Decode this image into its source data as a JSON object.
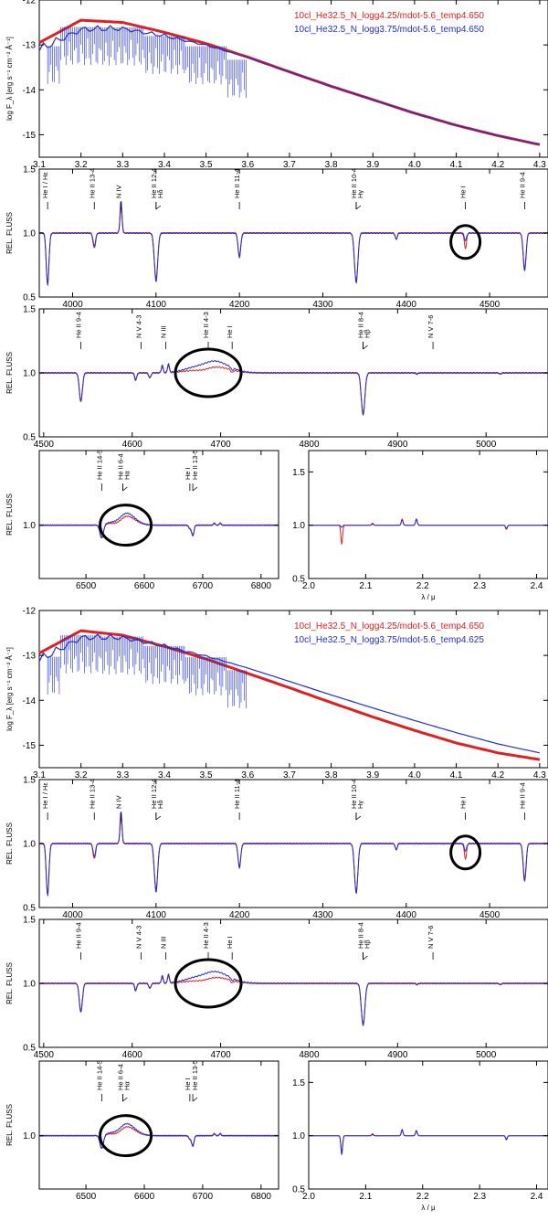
{
  "colors": {
    "red": "#e02020",
    "blue": "#1f2fd0",
    "axis": "#000000"
  },
  "blocks": [
    {
      "name": "top",
      "sed": {
        "legend": [
          {
            "text": "10cl_He32.5_N_logg4.25/mdot-5.6_temp4.650",
            "color": "#e02020"
          },
          {
            "text": "10cl_He32.5_N_logg3.75/mdot-5.6_temp4.650",
            "color": "#1f2fd0"
          }
        ],
        "ylabel": "log F_λ [erg s⁻¹ cm⁻² Å⁻¹]",
        "xticks": [
          "3.1",
          "3.2",
          "3.3",
          "3.4",
          "3.5",
          "3.6",
          "3.7",
          "3.8",
          "3.9",
          "4.0",
          "4.1",
          "4.2",
          "4.3"
        ],
        "yticks": [
          "-12",
          "-13",
          "-14",
          "-15"
        ]
      },
      "opt1": {
        "ylabel": "REL. FLUSS",
        "xticks": [
          "4000",
          "4100",
          "4200",
          "4300",
          "4400",
          "4500"
        ],
        "yticks": [
          "0.5",
          "1.0",
          "1.5"
        ],
        "lines": [
          "He I / Hε",
          "He II 13-4",
          "N IV",
          "He II 12-4",
          "Hδ",
          "He II 11-4",
          "He II 10-4",
          "Hγ",
          "He I",
          "He II 9-4"
        ]
      },
      "opt2": {
        "ylabel": "REL. FLUSS",
        "xticks": [
          "4500",
          "4600",
          "4700",
          "4800",
          "4900",
          "5000"
        ],
        "yticks": [
          "0.5",
          "1.0",
          "1.5"
        ],
        "lines": [
          "He II 9-4",
          "N V 4-3",
          "N III",
          "He II 4-3",
          "He I",
          "He II 8-4",
          "Hβ",
          "N V 7-6"
        ]
      },
      "halpha": {
        "ylabel": "REL. FLUSS",
        "xticks": [
          "6500",
          "6600",
          "6700",
          "6800"
        ],
        "yticks": [
          "1.0"
        ],
        "lines": [
          "He II 14-5",
          "He II 6-4",
          "Hα",
          "He I",
          "He II 13-5"
        ]
      },
      "ir": {
        "xlabel": "λ / μ",
        "xticks": [
          "2.0",
          "2.1",
          "2.2",
          "2.3",
          "2.4"
        ],
        "yticks": [
          "0.5",
          "1.0",
          "1.5"
        ]
      }
    },
    {
      "name": "bottom",
      "sed": {
        "legend": [
          {
            "text": "10cl_He32.5_N_logg4.25/mdot-5.6_temp4.650",
            "color": "#e02020"
          },
          {
            "text": "10cl_He32.5_N_logg3.75/mdot-5.6_temp4.625",
            "color": "#1f2fd0"
          }
        ],
        "ylabel": "log F_λ [erg s⁻¹ cm⁻² Å⁻¹]",
        "xticks": [
          "3.1",
          "3.2",
          "3.3",
          "3.4",
          "3.5",
          "3.6",
          "3.7",
          "3.8",
          "3.9",
          "4.0",
          "4.1",
          "4.2",
          "4.3"
        ],
        "yticks": [
          "-12",
          "-13",
          "-14",
          "-15"
        ]
      },
      "opt1": {
        "ylabel": "REL. FLUSS",
        "xticks": [
          "4000",
          "4100",
          "4200",
          "4300",
          "4400",
          "4500"
        ],
        "yticks": [
          "0.5",
          "1.0",
          "1.5"
        ],
        "lines": [
          "He I / Hε",
          "He II 13-4",
          "N IV",
          "He II 12-4",
          "Hδ",
          "He II 11-4",
          "He II 10-4",
          "Hγ",
          "He I",
          "He II 9-4"
        ]
      },
      "opt2": {
        "ylabel": "REL. FLUSS",
        "xticks": [
          "4500",
          "4600",
          "4700",
          "4800",
          "4900",
          "5000"
        ],
        "yticks": [
          "0.5",
          "1.0",
          "1.5"
        ],
        "lines": [
          "He II 9-4",
          "N V 4-3",
          "N III",
          "He II 4-3",
          "He I",
          "He II 8-4",
          "Hβ",
          "N V 7-6"
        ]
      },
      "halpha": {
        "ylabel": "REL. FLUSS",
        "xticks": [
          "6500",
          "6600",
          "6700",
          "6800"
        ],
        "yticks": [
          "1.0"
        ],
        "lines": [
          "He II 14-5",
          "He II 6-4",
          "Hα",
          "He I",
          "He II 13-5"
        ]
      },
      "ir": {
        "xlabel": "λ / μ",
        "xticks": [
          "2.0",
          "2.1",
          "2.2",
          "2.3",
          "2.4"
        ],
        "yticks": [
          "0.5",
          "1.0",
          "1.5"
        ]
      }
    }
  ],
  "chart_data": [
    {
      "type": "line",
      "xlabel": "",
      "ylabel": "log F_λ [erg s⁻¹ cm⁻² Å⁻¹]",
      "xlim": [
        3.1,
        4.32
      ],
      "ylim": [
        -15.5,
        -12.0
      ],
      "series": [
        {
          "name": "10cl_He32.5_N_logg4.25/mdot-5.6_temp4.650",
          "color": "#e02020",
          "x": [
            3.1,
            3.2,
            3.3,
            3.4,
            3.5,
            3.6,
            3.7,
            3.8,
            3.9,
            4.0,
            4.1,
            4.2,
            4.3
          ],
          "y": [
            -12.95,
            -12.45,
            -12.5,
            -12.72,
            -12.97,
            -13.27,
            -13.6,
            -13.92,
            -14.22,
            -14.52,
            -14.79,
            -15.02,
            -15.22
          ]
        },
        {
          "name": "10cl_He32.5_N_logg3.75/mdot-5.6_temp4.650",
          "color": "#1f2fd0",
          "x": [
            3.1,
            3.2,
            3.3,
            3.4,
            3.5,
            3.6,
            3.7,
            3.8,
            3.9,
            4.0,
            4.1,
            4.2,
            4.3
          ],
          "y": [
            -12.98,
            -12.55,
            -12.56,
            -12.75,
            -12.98,
            -13.28,
            -13.6,
            -13.92,
            -14.22,
            -14.52,
            -14.79,
            -15.02,
            -15.22
          ]
        }
      ]
    },
    {
      "type": "line",
      "xlabel": "",
      "ylabel": "REL. FLUSS",
      "xlim": [
        3960,
        4570
      ],
      "ylim": [
        0.5,
        1.5
      ],
      "series": [
        {
          "name": "10cl_He32.5_N_logg4.25/mdot-5.6_temp4.650",
          "color": "#e02020",
          "x": [
            4026,
            4058,
            4100,
            4200,
            4340,
            4471,
            4542
          ],
          "y": [
            0.88,
            1.2,
            0.65,
            0.83,
            0.63,
            0.88,
            0.73
          ]
        },
        {
          "name": "10cl_He32.5_N_logg3.75/mdot-5.6_temp4.650",
          "color": "#1f2fd0",
          "x": [
            4026,
            4058,
            4100,
            4200,
            4340,
            4471,
            4542
          ],
          "y": [
            0.9,
            1.25,
            0.62,
            0.82,
            0.62,
            0.94,
            0.71
          ]
        }
      ]
    },
    {
      "type": "line",
      "xlabel": "",
      "ylabel": "REL. FLUSS",
      "xlim": [
        4495,
        5070
      ],
      "ylim": [
        0.5,
        1.5
      ],
      "series": [
        {
          "name": "10cl_He32.5_N_logg4.25/mdot-5.6_temp4.650",
          "color": "#e02020",
          "x": [
            4542,
            4604,
            4634,
            4686,
            4861
          ],
          "y": [
            0.78,
            0.95,
            1.06,
            1.07,
            0.68
          ]
        },
        {
          "name": "10cl_He32.5_N_logg3.75/mdot-5.6_temp4.650",
          "color": "#1f2fd0",
          "x": [
            4542,
            4604,
            4634,
            4686,
            4861
          ],
          "y": [
            0.77,
            0.94,
            1.05,
            1.12,
            0.67
          ]
        }
      ]
    },
    {
      "type": "line",
      "xlabel": "",
      "ylabel": "REL. FLUSS",
      "xlim": [
        6420,
        6830
      ],
      "ylim": [
        0.5,
        1.7
      ],
      "series": [
        {
          "name": "10cl_He32.5_N_logg4.25/mdot-5.6_temp4.650",
          "color": "#e02020",
          "x": [
            6527,
            6563,
            6580,
            6678,
            6683
          ],
          "y": [
            0.88,
            0.86,
            1.1,
            0.97,
            0.9
          ]
        },
        {
          "name": "10cl_He32.5_N_logg3.75/mdot-5.6_temp4.650",
          "color": "#1f2fd0",
          "x": [
            6527,
            6563,
            6580,
            6678,
            6683
          ],
          "y": [
            0.87,
            0.85,
            1.14,
            0.97,
            0.89
          ]
        }
      ]
    },
    {
      "type": "line",
      "xlabel": "λ / μ",
      "ylabel": "",
      "xlim": [
        2.0,
        2.42
      ],
      "ylim": [
        0.5,
        1.7
      ],
      "series": [
        {
          "name": "10cl_He32.5_N_logg4.25/mdot-5.6_temp4.650",
          "color": "#e02020",
          "x": [
            2.058,
            2.112,
            2.164,
            2.189,
            2.347
          ],
          "y": [
            0.82,
            1.02,
            1.06,
            1.05,
            0.96
          ]
        },
        {
          "name": "10cl_He32.5_N_logg3.75/mdot-5.6_temp4.650",
          "color": "#1f2fd0",
          "x": [
            2.058,
            2.112,
            2.164,
            2.189,
            2.347
          ],
          "y": [
            0.98,
            1.01,
            1.05,
            1.06,
            0.97
          ]
        }
      ]
    },
    {
      "type": "line",
      "xlabel": "",
      "ylabel": "log F_λ [erg s⁻¹ cm⁻² Å⁻¹]",
      "xlim": [
        3.1,
        4.32
      ],
      "ylim": [
        -15.5,
        -12.0
      ],
      "series": [
        {
          "name": "10cl_He32.5_N_logg4.25/mdot-5.6_temp4.650",
          "color": "#e02020",
          "x": [
            3.1,
            3.2,
            3.3,
            3.4,
            3.5,
            3.6,
            3.7,
            3.8,
            3.9,
            4.0,
            4.1,
            4.2,
            4.3
          ],
          "y": [
            -12.95,
            -12.45,
            -12.55,
            -12.8,
            -13.08,
            -13.4,
            -13.72,
            -14.05,
            -14.37,
            -14.67,
            -14.95,
            -15.17,
            -15.32
          ]
        },
        {
          "name": "10cl_He32.5_N_logg3.75/mdot-5.6_temp4.625",
          "color": "#1f2fd0",
          "x": [
            3.1,
            3.2,
            3.3,
            3.4,
            3.5,
            3.6,
            3.7,
            3.8,
            3.9,
            4.0,
            4.1,
            4.2,
            4.3
          ],
          "y": [
            -12.98,
            -12.5,
            -12.53,
            -12.74,
            -12.99,
            -13.28,
            -13.58,
            -13.88,
            -14.17,
            -14.45,
            -14.72,
            -14.97,
            -15.17
          ]
        }
      ]
    },
    {
      "type": "line",
      "xlabel": "",
      "ylabel": "REL. FLUSS",
      "xlim": [
        3960,
        4570
      ],
      "ylim": [
        0.5,
        1.5
      ],
      "series": [
        {
          "name": "10cl_He32.5_N_logg4.25/mdot-5.6_temp4.650",
          "color": "#e02020",
          "x": [
            4026,
            4058,
            4100,
            4200,
            4340,
            4471,
            4542
          ],
          "y": [
            0.88,
            1.15,
            0.65,
            0.83,
            0.63,
            0.88,
            0.73
          ]
        },
        {
          "name": "10cl_He32.5_N_logg3.75/mdot-5.6_temp4.625",
          "color": "#1f2fd0",
          "x": [
            4026,
            4058,
            4100,
            4200,
            4340,
            4471,
            4542
          ],
          "y": [
            0.89,
            1.18,
            0.63,
            0.82,
            0.62,
            0.9,
            0.72
          ]
        }
      ]
    },
    {
      "type": "line",
      "xlabel": "",
      "ylabel": "REL. FLUSS",
      "xlim": [
        4495,
        5070
      ],
      "ylim": [
        0.5,
        1.5
      ],
      "series": [
        {
          "name": "10cl_He32.5_N_logg4.25/mdot-5.6_temp4.650",
          "color": "#e02020",
          "x": [
            4542,
            4604,
            4634,
            4686,
            4861
          ],
          "y": [
            0.78,
            0.95,
            1.06,
            1.05,
            0.68
          ]
        },
        {
          "name": "10cl_He32.5_N_logg3.75/mdot-5.6_temp4.625",
          "color": "#1f2fd0",
          "x": [
            4542,
            4604,
            4634,
            4686,
            4861
          ],
          "y": [
            0.77,
            0.96,
            1.08,
            1.08,
            0.69
          ]
        }
      ]
    },
    {
      "type": "line",
      "xlabel": "",
      "ylabel": "REL. FLUSS",
      "xlim": [
        6420,
        6830
      ],
      "ylim": [
        0.5,
        1.7
      ],
      "series": [
        {
          "name": "10cl_He32.5_N_logg4.25/mdot-5.6_temp4.650",
          "color": "#e02020",
          "x": [
            6527,
            6563,
            6580,
            6678,
            6683
          ],
          "y": [
            0.88,
            0.87,
            1.08,
            0.97,
            0.9
          ]
        },
        {
          "name": "10cl_He32.5_N_logg3.75/mdot-5.6_temp4.625",
          "color": "#1f2fd0",
          "x": [
            6527,
            6563,
            6580,
            6678,
            6683
          ],
          "y": [
            0.87,
            0.84,
            1.1,
            0.97,
            0.89
          ]
        }
      ]
    },
    {
      "type": "line",
      "xlabel": "λ / μ",
      "ylabel": "",
      "xlim": [
        2.0,
        2.42
      ],
      "ylim": [
        0.5,
        1.7
      ],
      "series": [
        {
          "name": "10cl_He32.5_N_logg4.25/mdot-5.6_temp4.650",
          "color": "#e02020",
          "x": [
            2.058,
            2.112,
            2.164,
            2.189,
            2.347
          ],
          "y": [
            0.84,
            1.02,
            1.05,
            1.04,
            0.97
          ]
        },
        {
          "name": "10cl_He32.5_N_logg3.75/mdot-5.6_temp4.625",
          "color": "#1f2fd0",
          "x": [
            2.058,
            2.112,
            2.164,
            2.189,
            2.347
          ],
          "y": [
            0.82,
            1.01,
            1.06,
            1.05,
            0.96
          ]
        }
      ]
    }
  ]
}
